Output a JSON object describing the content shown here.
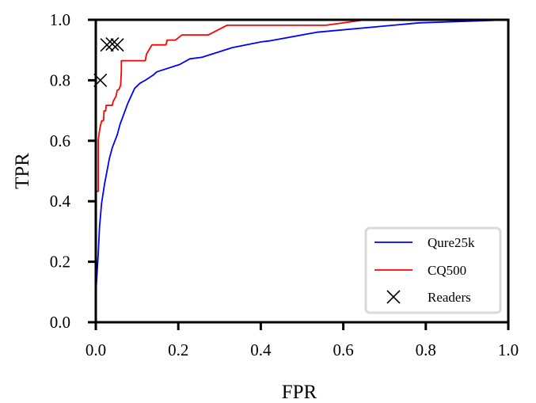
{
  "chart_data": {
    "type": "line",
    "title": "",
    "xlabel": "FPR",
    "ylabel": "TPR",
    "xlim": [
      0.0,
      1.0
    ],
    "ylim": [
      0.0,
      1.0
    ],
    "xticks": [
      "0.0",
      "0.2",
      "0.4",
      "0.6",
      "0.8",
      "1.0"
    ],
    "yticks": [
      "0.0",
      "0.2",
      "0.4",
      "0.6",
      "0.8",
      "1.0"
    ],
    "grid": false,
    "legend_position": "lower right",
    "series": [
      {
        "name": "Qure25k",
        "color": "#0000ff",
        "x": [
          0.0,
          0.001,
          0.006,
          0.009,
          0.014,
          0.021,
          0.033,
          0.04,
          0.052,
          0.059,
          0.078,
          0.094,
          0.107,
          0.12,
          0.139,
          0.148,
          0.203,
          0.228,
          0.257,
          0.292,
          0.331,
          0.401,
          0.42,
          0.536,
          0.785,
          0.944,
          1.0
        ],
        "y": [
          0.0,
          0.115,
          0.228,
          0.315,
          0.393,
          0.455,
          0.542,
          0.577,
          0.62,
          0.655,
          0.725,
          0.773,
          0.79,
          0.8,
          0.817,
          0.828,
          0.852,
          0.871,
          0.876,
          0.891,
          0.908,
          0.927,
          0.93,
          0.959,
          0.99,
          0.997,
          1.0
        ]
      },
      {
        "name": "CQ500",
        "color": "#ff0000",
        "x": [
          0.0,
          0.006,
          0.006,
          0.006,
          0.01,
          0.014,
          0.019,
          0.02,
          0.024,
          0.025,
          0.033,
          0.04,
          0.042,
          0.049,
          0.052,
          0.056,
          0.06,
          0.062,
          0.062,
          0.12,
          0.123,
          0.136,
          0.17,
          0.173,
          0.193,
          0.209,
          0.273,
          0.318,
          0.558,
          0.638,
          0.65,
          1.0
        ],
        "y": [
          0.433,
          0.433,
          0.55,
          0.603,
          0.642,
          0.665,
          0.668,
          0.699,
          0.699,
          0.717,
          0.717,
          0.717,
          0.73,
          0.747,
          0.767,
          0.77,
          0.783,
          0.83,
          0.865,
          0.865,
          0.887,
          0.917,
          0.917,
          0.933,
          0.933,
          0.95,
          0.95,
          0.982,
          0.982,
          0.997,
          1.0,
          1.0
        ]
      },
      {
        "name": "Readers",
        "color": "#000000",
        "marker": "x",
        "x": [
          0.011,
          0.027,
          0.04,
          0.052
        ],
        "y": [
          0.8,
          0.917,
          0.92,
          0.917
        ]
      }
    ]
  },
  "legend": {
    "items": [
      {
        "label": "Qure25k"
      },
      {
        "label": "CQ500"
      },
      {
        "label": "Readers"
      }
    ]
  }
}
